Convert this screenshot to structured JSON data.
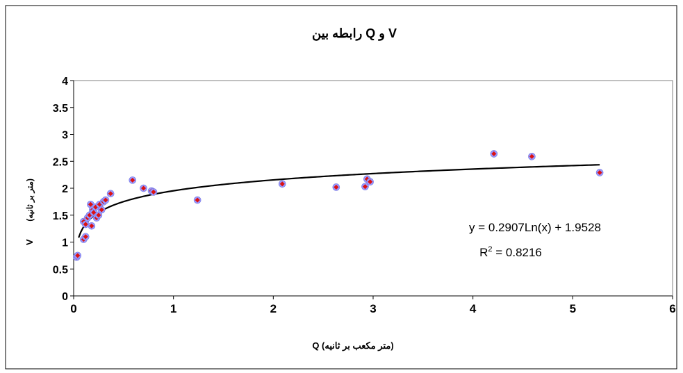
{
  "chart_data": {
    "type": "scatter",
    "title": "رابطه بین  Q و V",
    "xlabel": "Q (متر مکعب بر ثانیه)",
    "ylabel_main": "V",
    "ylabel_sub": "(متر بر ثانیه)",
    "xlim": [
      0,
      6
    ],
    "ylim": [
      0,
      4
    ],
    "x_ticks": [
      "0",
      "1",
      "2",
      "3",
      "4",
      "5",
      "6"
    ],
    "y_ticks": [
      "0",
      "0.5",
      "1",
      "1.5",
      "2",
      "2.5",
      "3",
      "3.5",
      "4"
    ],
    "grid": false,
    "marker_outer_color": "#9999ff",
    "marker_inner_color": "#dd1111",
    "trend_color": "#000000",
    "points": [
      {
        "x": 0.03,
        "y": 0.72
      },
      {
        "x": 0.04,
        "y": 0.75
      },
      {
        "x": 0.1,
        "y": 1.05
      },
      {
        "x": 0.12,
        "y": 1.1
      },
      {
        "x": 0.1,
        "y": 1.38
      },
      {
        "x": 0.12,
        "y": 1.33
      },
      {
        "x": 0.14,
        "y": 1.45
      },
      {
        "x": 0.16,
        "y": 1.5
      },
      {
        "x": 0.18,
        "y": 1.3
      },
      {
        "x": 0.17,
        "y": 1.7
      },
      {
        "x": 0.19,
        "y": 1.6
      },
      {
        "x": 0.2,
        "y": 1.55
      },
      {
        "x": 0.22,
        "y": 1.65
      },
      {
        "x": 0.23,
        "y": 1.45
      },
      {
        "x": 0.25,
        "y": 1.5
      },
      {
        "x": 0.26,
        "y": 1.7
      },
      {
        "x": 0.28,
        "y": 1.6
      },
      {
        "x": 0.3,
        "y": 1.75
      },
      {
        "x": 0.32,
        "y": 1.78
      },
      {
        "x": 0.37,
        "y": 1.9
      },
      {
        "x": 0.59,
        "y": 2.15
      },
      {
        "x": 0.7,
        "y": 2.0
      },
      {
        "x": 0.78,
        "y": 1.95
      },
      {
        "x": 0.8,
        "y": 1.93
      },
      {
        "x": 1.24,
        "y": 1.78
      },
      {
        "x": 2.09,
        "y": 2.08
      },
      {
        "x": 2.63,
        "y": 2.02
      },
      {
        "x": 2.92,
        "y": 2.03
      },
      {
        "x": 2.94,
        "y": 2.17
      },
      {
        "x": 2.97,
        "y": 2.12
      },
      {
        "x": 4.21,
        "y": 2.64
      },
      {
        "x": 4.59,
        "y": 2.59
      },
      {
        "x": 5.27,
        "y": 2.29
      }
    ],
    "trendline": {
      "type": "logarithmic",
      "a": 0.2907,
      "b": 1.9528,
      "x_from": 0.05,
      "x_to": 5.27
    },
    "equation_label": "y = 0.2907Ln(x) + 1.9528",
    "r2_prefix": "R",
    "r2_sup": "2",
    "r2_value": " = 0.8216"
  }
}
